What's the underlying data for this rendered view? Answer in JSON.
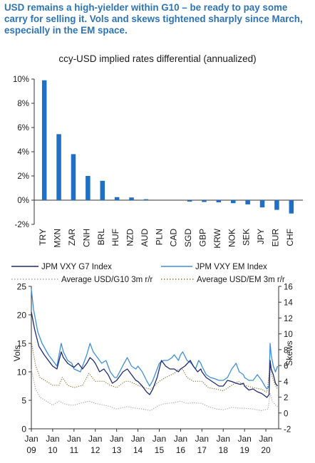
{
  "headline": "USD remains a high-yielder within G10 – be ready to pay some carry for selling it. Vols and skews tightened sharply since March, especially in the EM space.",
  "colors": {
    "headline": "#2E74B5",
    "bar": "#1F6FC6",
    "g7": "#1F2A6E",
    "em": "#3E8FDB",
    "g10rr": "#A8A8A8",
    "emrr": "#8A7A32"
  },
  "chart_data": [
    {
      "type": "bar",
      "title": "ccy-USD implied rates differential (annualized)",
      "categories": [
        "TRY",
        "MXN",
        "ZAR",
        "CNH",
        "BRL",
        "HUF",
        "NZD",
        "AUD",
        "PLN",
        "CAD",
        "SGD",
        "GBP",
        "KRW",
        "NOK",
        "SEK",
        "JPY",
        "EUR",
        "CHF"
      ],
      "values": [
        9.9,
        5.45,
        3.8,
        2.0,
        1.6,
        0.25,
        0.22,
        0.08,
        0.0,
        0.0,
        -0.12,
        -0.15,
        -0.18,
        -0.25,
        -0.35,
        -0.6,
        -0.8,
        -1.1
      ],
      "ylim": [
        -2,
        10
      ],
      "yticks": [
        -2,
        0,
        2,
        4,
        6,
        8,
        10
      ],
      "ytick_labels": [
        "-2%",
        "0%",
        "2%",
        "4%",
        "6%",
        "8%",
        "10%"
      ],
      "xlabel": "",
      "ylabel": ""
    },
    {
      "type": "line",
      "x_start": 2009.0,
      "x_end": 2020.6,
      "xtick_years": [
        2009,
        2010,
        2011,
        2012,
        2013,
        2014,
        2015,
        2016,
        2017,
        2018,
        2019,
        2020
      ],
      "xtick_labels_top": [
        "Jan",
        "Jan",
        "Jan",
        "Jan",
        "Jan",
        "Jan",
        "Jan",
        "Jan",
        "Jan",
        "Jan",
        "Jan",
        "Jan"
      ],
      "xtick_labels_bottom": [
        "09",
        "10",
        "11",
        "12",
        "13",
        "14",
        "15",
        "16",
        "17",
        "18",
        "19",
        "20"
      ],
      "ylabel_left": "Vols",
      "ylabel_right": "Skews",
      "ylim_left": [
        0,
        25
      ],
      "yticks_left": [
        0,
        5,
        10,
        15,
        20,
        25
      ],
      "ylim_right": [
        -2,
        16
      ],
      "yticks_right": [
        -2,
        0,
        2,
        4,
        6,
        8,
        10,
        12,
        14,
        16
      ],
      "series": [
        {
          "name": "JPM VXY G7 Index",
          "axis": "left",
          "style": "solid",
          "points": [
            [
              2009.0,
              20.5
            ],
            [
              2009.15,
              17.5
            ],
            [
              2009.35,
              14.5
            ],
            [
              2009.6,
              13
            ],
            [
              2009.8,
              12
            ],
            [
              2010.0,
              11
            ],
            [
              2010.2,
              10.5
            ],
            [
              2010.4,
              13.5
            ],
            [
              2010.5,
              12.5
            ],
            [
              2010.7,
              11.5
            ],
            [
              2010.9,
              11
            ],
            [
              2011.0,
              10.8
            ],
            [
              2011.2,
              11.5
            ],
            [
              2011.4,
              10.5
            ],
            [
              2011.6,
              11.5
            ],
            [
              2011.75,
              12.5
            ],
            [
              2011.9,
              12
            ],
            [
              2012.0,
              11.5
            ],
            [
              2012.2,
              10
            ],
            [
              2012.4,
              10.5
            ],
            [
              2012.6,
              9.5
            ],
            [
              2012.8,
              8
            ],
            [
              2013.0,
              8.5
            ],
            [
              2013.3,
              10
            ],
            [
              2013.5,
              10.5
            ],
            [
              2013.7,
              9.5
            ],
            [
              2013.9,
              8.5
            ],
            [
              2014.0,
              8.3
            ],
            [
              2014.2,
              7.5
            ],
            [
              2014.4,
              6.5
            ],
            [
              2014.55,
              6
            ],
            [
              2014.7,
              7
            ],
            [
              2014.9,
              9
            ],
            [
              2015.0,
              10.5
            ],
            [
              2015.1,
              12
            ],
            [
              2015.3,
              11
            ],
            [
              2015.5,
              10.5
            ],
            [
              2015.7,
              10.5
            ],
            [
              2015.9,
              10
            ],
            [
              2016.0,
              10.5
            ],
            [
              2016.2,
              11
            ],
            [
              2016.45,
              12
            ],
            [
              2016.6,
              11
            ],
            [
              2016.8,
              10
            ],
            [
              2016.95,
              10.5
            ],
            [
              2017.0,
              10
            ],
            [
              2017.2,
              9
            ],
            [
              2017.4,
              8.5
            ],
            [
              2017.6,
              8
            ],
            [
              2017.8,
              7.5
            ],
            [
              2017.95,
              7.5
            ],
            [
              2018.0,
              7.5
            ],
            [
              2018.2,
              8.5
            ],
            [
              2018.4,
              8.3
            ],
            [
              2018.6,
              8
            ],
            [
              2018.8,
              7.8
            ],
            [
              2018.95,
              8
            ],
            [
              2019.0,
              7.5
            ],
            [
              2019.2,
              6.8
            ],
            [
              2019.4,
              7
            ],
            [
              2019.6,
              6.5
            ],
            [
              2019.8,
              6.2
            ],
            [
              2019.95,
              5.8
            ],
            [
              2020.05,
              5.5
            ],
            [
              2020.15,
              6
            ],
            [
              2020.2,
              12
            ],
            [
              2020.25,
              10.5
            ],
            [
              2020.35,
              9.5
            ],
            [
              2020.45,
              8
            ],
            [
              2020.55,
              7.5
            ]
          ]
        },
        {
          "name": "JPM VXY EM Index",
          "axis": "left",
          "style": "solid",
          "points": [
            [
              2009.0,
              24.5
            ],
            [
              2009.1,
              21
            ],
            [
              2009.3,
              17
            ],
            [
              2009.5,
              15
            ],
            [
              2009.8,
              13
            ],
            [
              2010.0,
              12
            ],
            [
              2010.2,
              11
            ],
            [
              2010.4,
              15
            ],
            [
              2010.5,
              13.5
            ],
            [
              2010.7,
              12
            ],
            [
              2010.9,
              11.5
            ],
            [
              2011.0,
              10.5
            ],
            [
              2011.3,
              10
            ],
            [
              2011.6,
              13
            ],
            [
              2011.75,
              15
            ],
            [
              2011.9,
              13.5
            ],
            [
              2012.0,
              13
            ],
            [
              2012.3,
              11.5
            ],
            [
              2012.5,
              12
            ],
            [
              2012.7,
              10
            ],
            [
              2012.9,
              9
            ],
            [
              2013.0,
              9
            ],
            [
              2013.35,
              11.5
            ],
            [
              2013.5,
              12.5
            ],
            [
              2013.7,
              11
            ],
            [
              2013.9,
              10.5
            ],
            [
              2014.0,
              11
            ],
            [
              2014.2,
              10
            ],
            [
              2014.4,
              8.5
            ],
            [
              2014.55,
              7.5
            ],
            [
              2014.7,
              8.5
            ],
            [
              2014.9,
              10.5
            ],
            [
              2015.0,
              11.5
            ],
            [
              2015.2,
              12
            ],
            [
              2015.4,
              12
            ],
            [
              2015.6,
              12.5
            ],
            [
              2015.7,
              13
            ],
            [
              2015.9,
              12
            ],
            [
              2016.0,
              13
            ],
            [
              2016.1,
              13.5
            ],
            [
              2016.3,
              12
            ],
            [
              2016.5,
              11.5
            ],
            [
              2016.7,
              10.5
            ],
            [
              2016.85,
              12
            ],
            [
              2016.95,
              11.5
            ],
            [
              2017.0,
              11
            ],
            [
              2017.2,
              9.5
            ],
            [
              2017.4,
              9
            ],
            [
              2017.6,
              8.8
            ],
            [
              2017.8,
              8.5
            ],
            [
              2017.95,
              8.5
            ],
            [
              2018.0,
              8.5
            ],
            [
              2018.2,
              9
            ],
            [
              2018.4,
              10.5
            ],
            [
              2018.6,
              11.5
            ],
            [
              2018.75,
              10
            ],
            [
              2018.95,
              9.5
            ],
            [
              2019.0,
              9
            ],
            [
              2019.2,
              8.5
            ],
            [
              2019.4,
              8.5
            ],
            [
              2019.6,
              9.5
            ],
            [
              2019.8,
              8.5
            ],
            [
              2019.95,
              7.5
            ],
            [
              2020.05,
              7
            ],
            [
              2020.15,
              7.5
            ],
            [
              2020.2,
              15
            ],
            [
              2020.25,
              13
            ],
            [
              2020.35,
              11
            ],
            [
              2020.45,
              10
            ],
            [
              2020.55,
              11
            ]
          ]
        },
        {
          "name": "Average USD/G10 3m r/r",
          "axis": "right",
          "style": "dotted",
          "points": [
            [
              2009.0,
              5.5
            ],
            [
              2009.2,
              3
            ],
            [
              2009.4,
              2
            ],
            [
              2009.7,
              1.5
            ],
            [
              2010.0,
              1
            ],
            [
              2010.3,
              1.5
            ],
            [
              2010.5,
              1.2
            ],
            [
              2010.8,
              1
            ],
            [
              2011.0,
              1
            ],
            [
              2011.4,
              1.3
            ],
            [
              2011.7,
              1.5
            ],
            [
              2012.0,
              1.2
            ],
            [
              2012.4,
              1
            ],
            [
              2012.7,
              0.8
            ],
            [
              2013.0,
              0.5
            ],
            [
              2013.5,
              0.8
            ],
            [
              2013.9,
              0.6
            ],
            [
              2014.2,
              0.5
            ],
            [
              2014.6,
              0.3
            ],
            [
              2015.0,
              1
            ],
            [
              2015.3,
              1.2
            ],
            [
              2015.7,
              1.3
            ],
            [
              2016.0,
              1.5
            ],
            [
              2016.3,
              1.2
            ],
            [
              2016.6,
              1.3
            ],
            [
              2017.0,
              1.2
            ],
            [
              2017.3,
              0.8
            ],
            [
              2017.7,
              0.5
            ],
            [
              2018.0,
              0.4
            ],
            [
              2018.4,
              0.7
            ],
            [
              2018.8,
              0.6
            ],
            [
              2019.0,
              0.6
            ],
            [
              2019.4,
              0.5
            ],
            [
              2019.8,
              0.3
            ],
            [
              2020.1,
              0.5
            ],
            [
              2020.2,
              2.5
            ],
            [
              2020.3,
              1.5
            ],
            [
              2020.45,
              1
            ],
            [
              2020.55,
              0.8
            ]
          ]
        },
        {
          "name": "Average USD/EM 3m r/r",
          "axis": "right",
          "style": "dotted",
          "points": [
            [
              2009.0,
              9
            ],
            [
              2009.2,
              6
            ],
            [
              2009.4,
              4.5
            ],
            [
              2009.7,
              4
            ],
            [
              2010.0,
              3.5
            ],
            [
              2010.3,
              3.5
            ],
            [
              2010.45,
              4.5
            ],
            [
              2010.7,
              3.5
            ],
            [
              2011.0,
              3.2
            ],
            [
              2011.4,
              3.5
            ],
            [
              2011.7,
              5
            ],
            [
              2011.85,
              4.5
            ],
            [
              2012.0,
              4
            ],
            [
              2012.4,
              4
            ],
            [
              2012.7,
              3.5
            ],
            [
              2013.0,
              3.2
            ],
            [
              2013.4,
              4
            ],
            [
              2013.6,
              4
            ],
            [
              2014.0,
              3.5
            ],
            [
              2014.3,
              3.2
            ],
            [
              2014.6,
              3
            ],
            [
              2015.0,
              4
            ],
            [
              2015.3,
              4.5
            ],
            [
              2015.7,
              5
            ],
            [
              2015.9,
              5.5
            ],
            [
              2016.1,
              5.5
            ],
            [
              2016.3,
              4.5
            ],
            [
              2016.6,
              4
            ],
            [
              2017.0,
              4
            ],
            [
              2017.3,
              3.2
            ],
            [
              2017.7,
              3
            ],
            [
              2018.0,
              2.8
            ],
            [
              2018.4,
              3.5
            ],
            [
              2018.7,
              4
            ],
            [
              2019.0,
              3.5
            ],
            [
              2019.4,
              3.2
            ],
            [
              2019.8,
              3
            ],
            [
              2020.05,
              2.6
            ],
            [
              2020.2,
              6
            ],
            [
              2020.3,
              4.5
            ],
            [
              2020.45,
              3.5
            ],
            [
              2020.55,
              3
            ]
          ]
        }
      ]
    }
  ]
}
